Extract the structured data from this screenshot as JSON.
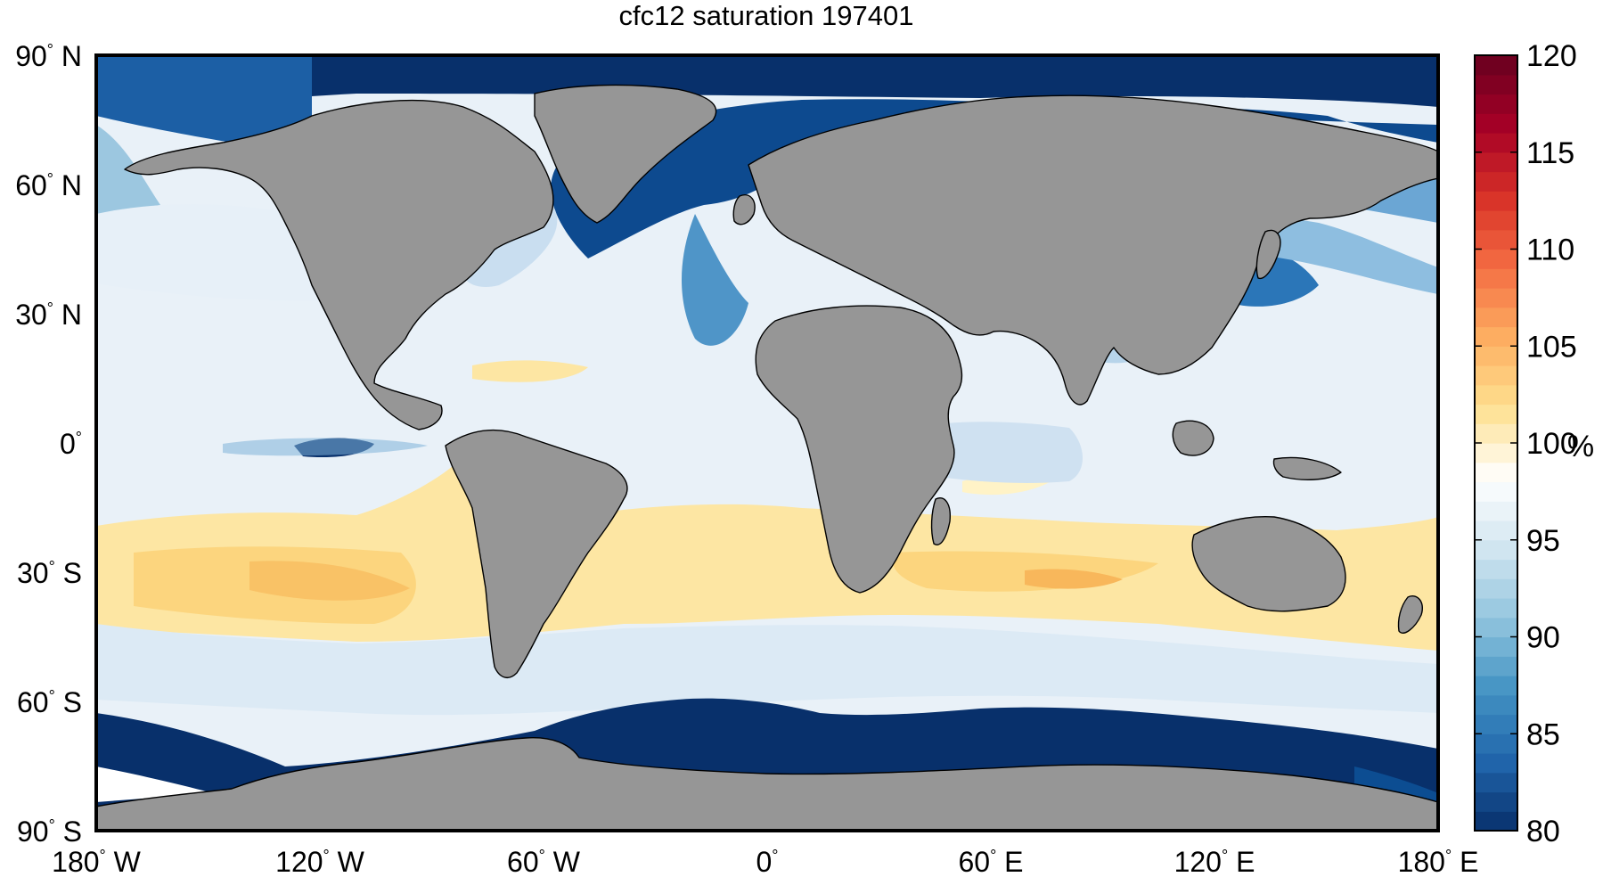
{
  "map": {
    "title": "cfc12 saturation 197401",
    "lat_labels": [
      {
        "deg": "90",
        "hem": "N"
      },
      {
        "deg": "60",
        "hem": "N"
      },
      {
        "deg": "30",
        "hem": "N"
      },
      {
        "deg": "0",
        "hem": ""
      },
      {
        "deg": "30",
        "hem": "S"
      },
      {
        "deg": "60",
        "hem": "S"
      },
      {
        "deg": "90",
        "hem": "S"
      }
    ],
    "lon_labels": [
      {
        "deg": "180",
        "hem": "W"
      },
      {
        "deg": "120",
        "hem": "W"
      },
      {
        "deg": "60",
        "hem": "W"
      },
      {
        "deg": "0",
        "hem": ""
      },
      {
        "deg": "60",
        "hem": "E"
      },
      {
        "deg": "120",
        "hem": "E"
      },
      {
        "deg": "180",
        "hem": "E"
      }
    ],
    "land_color": "#969696",
    "colorbar": {
      "min": 80,
      "max": 120,
      "ticks": [
        "120",
        "115",
        "110",
        "105",
        "100",
        "95",
        "90",
        "85",
        "80"
      ],
      "unit": "%",
      "levels": 40,
      "colors": [
        "#08306b",
        "#2166ac",
        "#4393c3",
        "#92c5de",
        "#d1e5f0",
        "#ffffff",
        "#fee090",
        "#fdae61",
        "#f46d43",
        "#d73027",
        "#a50026",
        "#67001f"
      ]
    }
  }
}
